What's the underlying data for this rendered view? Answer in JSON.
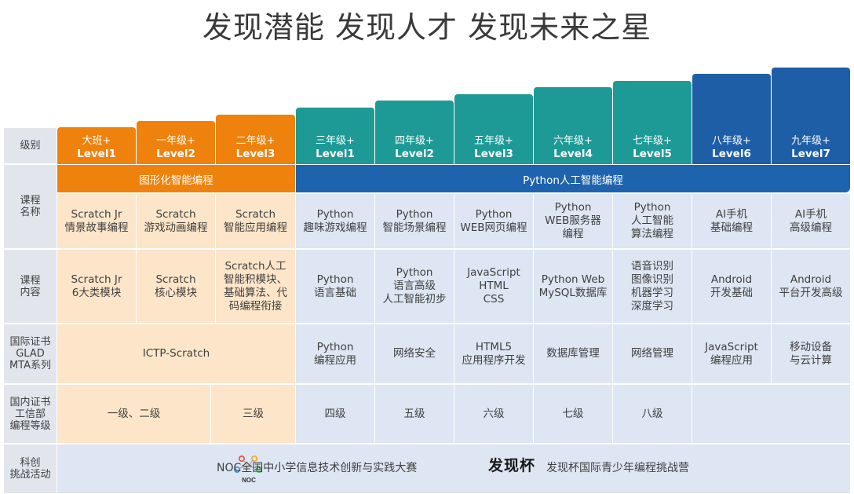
{
  "title": "发现潜能 发现人才 发现未来之星",
  "row_labels": {
    "level": "级别",
    "course_name": "课程\n名称",
    "course_content": "课程\n内容",
    "intl_cert": "国际证书\nGLAD\nMTA系列",
    "domestic_cert": "国内证书\n工信部\n编程等级",
    "activities": "科创\n挑战活动"
  },
  "levels": [
    {
      "grade": "大班+",
      "level": "Level1"
    },
    {
      "grade": "一年级+",
      "level": "Level2"
    },
    {
      "grade": "二年级+",
      "level": "Level3"
    },
    {
      "grade": "三年级+",
      "level": "Level1"
    },
    {
      "grade": "四年级+",
      "level": "Level2"
    },
    {
      "grade": "五年级+",
      "level": "Level3"
    },
    {
      "grade": "六年级+",
      "level": "Level4"
    },
    {
      "grade": "七年级+",
      "level": "Level5"
    },
    {
      "grade": "八年级+",
      "level": "Level6"
    },
    {
      "grade": "九年级+",
      "level": "Level7"
    }
  ],
  "tracks": {
    "graphical": "图形化智能编程",
    "python": "Python人工智能编程"
  },
  "course_names": [
    "Scratch Jr\n情景故事编程",
    "Scratch\n游戏动画编程",
    "Scratch\n智能应用编程",
    "Python\n趣味游戏编程",
    "Python\n智能场景编程",
    "Python\nWEB网页编程",
    "Python\nWEB服务器\n编程",
    "Python\n人工智能\n算法编程",
    "AI手机\n基础编程",
    "AI手机\n高级编程"
  ],
  "course_contents": [
    "Scratch Jr\n6大类模块",
    "Scratch\n核心模块",
    "Scratch人工\n智能积模块、\n基础算法、代\n码编程衔接",
    "Python\n语言基础",
    "Python\n语言高级\n人工智能初步",
    "JavaScript\nHTML\nCSS",
    "Python Web\nMySQL数据库",
    "语音识别\n图像识别\n机器学习\n深度学习",
    "Android\n开发基础",
    "Android\n平台开发高级"
  ],
  "intl_certs": {
    "scratch": "ICTP-Scratch",
    "items": [
      "Python\n编程应用",
      "网络安全",
      "HTML5\n应用程序开发",
      "数据库管理",
      "网络管理",
      "JavaScript\n编程应用",
      "移动设备\n与云计算"
    ]
  },
  "domestic_certs": {
    "first": "一级、二级",
    "items": [
      "三级",
      "四级",
      "五级",
      "六级",
      "七级",
      "八级"
    ]
  },
  "activities": {
    "noc_logo_text": "NOC",
    "noc_text": "NOC全国中小学信息技术创新与实践大赛",
    "brand_logo_text": "发现杯",
    "brand_text": "发现杯国际青少年编程挑战营"
  },
  "colors": {
    "orange": "#ee820c",
    "teal": "#1d9a96",
    "dark_blue": "#1e5ea7",
    "band_blue": "#1e63ad",
    "orange_light": "#fde5c9",
    "blue_light": "#dde6f2",
    "label_gray": "#e2e6ec"
  }
}
